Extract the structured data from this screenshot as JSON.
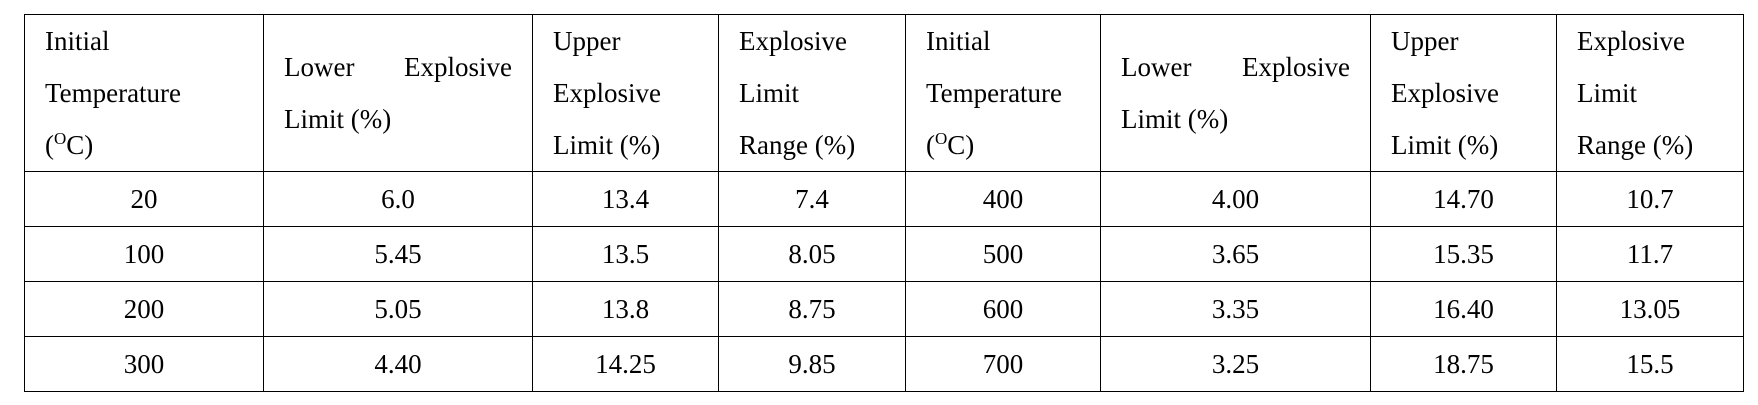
{
  "table": {
    "headers": [
      {
        "lines": [
          "Initial",
          "Temperature"
        ],
        "unit_open": "(",
        "unit_sup": "O",
        "unit_close": "C)"
      },
      {
        "lines": [
          "Lower",
          "Explosive",
          "Limit (%)"
        ]
      },
      {
        "lines": [
          "Upper",
          "Explosive",
          "Limit (%)"
        ]
      },
      {
        "lines": [
          "Explosive",
          "Limit",
          "Range (%)"
        ]
      },
      {
        "lines": [
          "Initial",
          "Temperature"
        ],
        "unit_open": "(",
        "unit_sup": "O",
        "unit_close": "C)"
      },
      {
        "lines": [
          "Lower",
          "Explosive",
          "Limit (%)"
        ]
      },
      {
        "lines": [
          "Upper",
          "Explosive",
          "Limit (%)"
        ]
      },
      {
        "lines": [
          "Explosive",
          "Limit",
          "Range (%)"
        ]
      }
    ],
    "rows": [
      [
        "20",
        "6.0",
        "13.4",
        "7.4",
        "400",
        "4.00",
        "14.70",
        "10.7"
      ],
      [
        "100",
        "5.45",
        "13.5",
        "8.05",
        "500",
        "3.65",
        "15.35",
        "11.7"
      ],
      [
        "200",
        "5.05",
        "13.8",
        "8.75",
        "600",
        "3.35",
        "16.40",
        "13.05"
      ],
      [
        "300",
        "4.40",
        "14.25",
        "9.85",
        "700",
        "3.25",
        "18.75",
        "15.5"
      ]
    ]
  }
}
